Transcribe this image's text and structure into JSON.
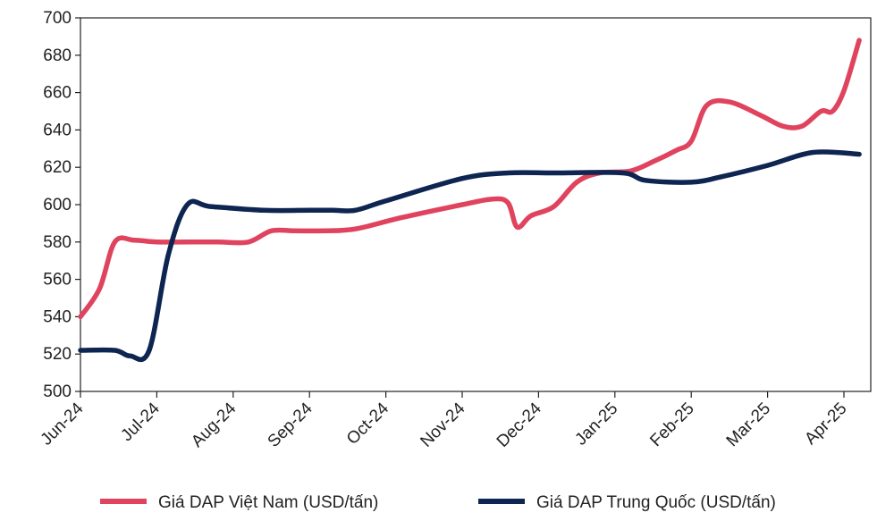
{
  "chart_data": {
    "type": "line",
    "title": "",
    "xlabel": "",
    "ylabel": "",
    "ylim": [
      500,
      700
    ],
    "y_ticks": [
      500,
      520,
      540,
      560,
      580,
      600,
      620,
      640,
      660,
      680,
      700
    ],
    "x_tick_labels": [
      "Jun-24",
      "Jul-24",
      "Aug-24",
      "Sep-24",
      "Oct-24",
      "Nov-24",
      "Dec-24",
      "Jan-25",
      "Feb-25",
      "Mar-25",
      "Apr-25"
    ],
    "grid": false,
    "legend_position": "bottom",
    "series": [
      {
        "name": "Giá DAP Việt Nam (USD/tấn)",
        "color": "#e0435e",
        "points": [
          [
            0,
            540
          ],
          [
            0.25,
            555
          ],
          [
            0.45,
            580
          ],
          [
            0.7,
            581
          ],
          [
            1.0,
            580
          ],
          [
            1.4,
            580
          ],
          [
            1.8,
            580
          ],
          [
            2.2,
            580
          ],
          [
            2.5,
            586
          ],
          [
            2.8,
            586
          ],
          [
            3.2,
            586
          ],
          [
            3.6,
            587
          ],
          [
            4.2,
            593
          ],
          [
            5.0,
            600
          ],
          [
            5.4,
            603
          ],
          [
            5.6,
            601
          ],
          [
            5.72,
            588
          ],
          [
            5.9,
            594
          ],
          [
            6.2,
            599
          ],
          [
            6.5,
            612
          ],
          [
            6.8,
            617
          ],
          [
            7.2,
            618
          ],
          [
            7.5,
            623
          ],
          [
            7.8,
            629
          ],
          [
            8.0,
            634
          ],
          [
            8.2,
            653
          ],
          [
            8.5,
            655
          ],
          [
            8.9,
            648
          ],
          [
            9.2,
            642
          ],
          [
            9.45,
            642
          ],
          [
            9.7,
            650
          ],
          [
            9.85,
            650
          ],
          [
            10.0,
            661
          ],
          [
            10.2,
            688
          ]
        ]
      },
      {
        "name": "Giá DAP Trung Quốc (USD/tấn)",
        "color": "#0d2550",
        "points": [
          [
            0,
            522
          ],
          [
            0.45,
            522
          ],
          [
            0.65,
            519
          ],
          [
            0.9,
            522
          ],
          [
            1.15,
            573
          ],
          [
            1.4,
            600
          ],
          [
            1.7,
            599
          ],
          [
            2.4,
            597
          ],
          [
            3.0,
            597
          ],
          [
            3.3,
            597
          ],
          [
            3.6,
            597
          ],
          [
            4.0,
            602
          ],
          [
            5.0,
            614
          ],
          [
            5.6,
            617
          ],
          [
            6.2,
            617
          ],
          [
            7.1,
            617
          ],
          [
            7.4,
            613
          ],
          [
            8.0,
            612
          ],
          [
            8.4,
            615
          ],
          [
            9.0,
            621
          ],
          [
            9.6,
            628
          ],
          [
            10.2,
            627
          ]
        ]
      }
    ]
  }
}
